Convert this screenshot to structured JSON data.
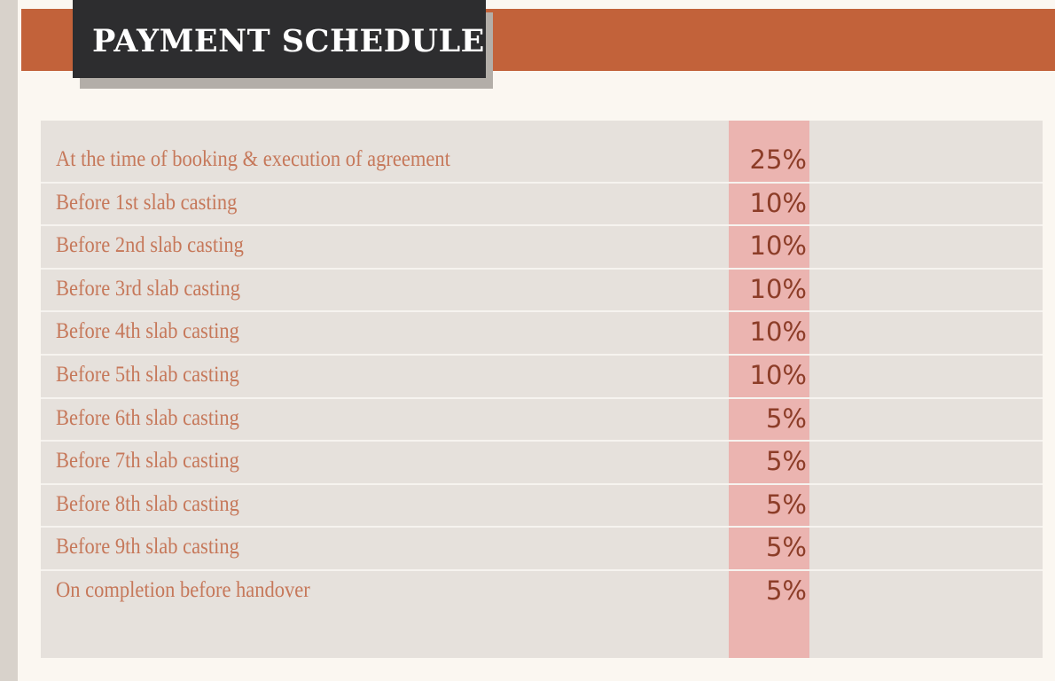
{
  "header": {
    "title": "PAYMENT SCHEDULE"
  },
  "colors": {
    "band": "#c2623a",
    "title_box": "#2d2d2f",
    "table_bg": "#e6e1dc",
    "percent_column": "#ebb4b0",
    "label_text": "#c6785a",
    "percent_text": "#8c3d28"
  },
  "schedule": {
    "rows": [
      {
        "stage": "At the time of booking & execution of agreement",
        "percent": "25%"
      },
      {
        "stage": "Before 1st slab casting",
        "percent": "10%"
      },
      {
        "stage": "Before 2nd slab casting",
        "percent": "10%"
      },
      {
        "stage": "Before 3rd slab casting",
        "percent": "10%"
      },
      {
        "stage": "Before 4th slab casting",
        "percent": "10%"
      },
      {
        "stage": "Before 5th slab casting",
        "percent": "10%"
      },
      {
        "stage": "Before 6th slab casting",
        "percent": "5%"
      },
      {
        "stage": "Before 7th slab casting",
        "percent": "5%"
      },
      {
        "stage": "Before 8th slab casting",
        "percent": "5%"
      },
      {
        "stage": "Before 9th slab casting",
        "percent": "5%"
      },
      {
        "stage": "On completion before handover",
        "percent": "5%"
      }
    ]
  }
}
